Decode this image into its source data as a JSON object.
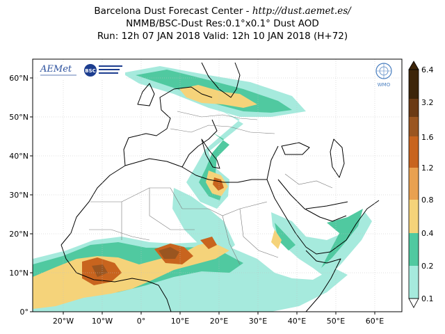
{
  "title": {
    "line1": "Barcelona Dust Forecast Center - ",
    "url": "http://dust.aemet.es/",
    "line2": "NMMB/BSC-Dust   Res:0.1°x0.1°   Dust AOD",
    "line3": "Run: 12h 07 JAN 2018   Valid: 12h 10 JAN 2018 (H+72)"
  },
  "logos": {
    "aemet_text": "AEMet",
    "bsc_text": "BSC",
    "wmo_text": "WMO"
  },
  "map": {
    "lat_ticks": [
      "60°N",
      "50°N",
      "40°N",
      "30°N",
      "20°N",
      "10°N",
      "0°"
    ],
    "lon_ticks": [
      "20°W",
      "10°W",
      "0°",
      "10°E",
      "20°E",
      "30°E",
      "40°E",
      "50°E",
      "60°E"
    ],
    "lon_range": [
      -28,
      67
    ],
    "lat_range": [
      0,
      65
    ],
    "ocean_color": "#ffffff",
    "land_color": "#ffffff"
  },
  "colorbar": {
    "labels": [
      "6.4",
      "3.2",
      "1.6",
      "1.2",
      "0.8",
      "0.4",
      "0.2",
      "0.1"
    ],
    "colors": [
      "#3d2509",
      "#6b3a14",
      "#9a5520",
      "#c8641e",
      "#e9a150",
      "#f5d37a",
      "#50c9a0",
      "#a6eadd"
    ]
  }
}
